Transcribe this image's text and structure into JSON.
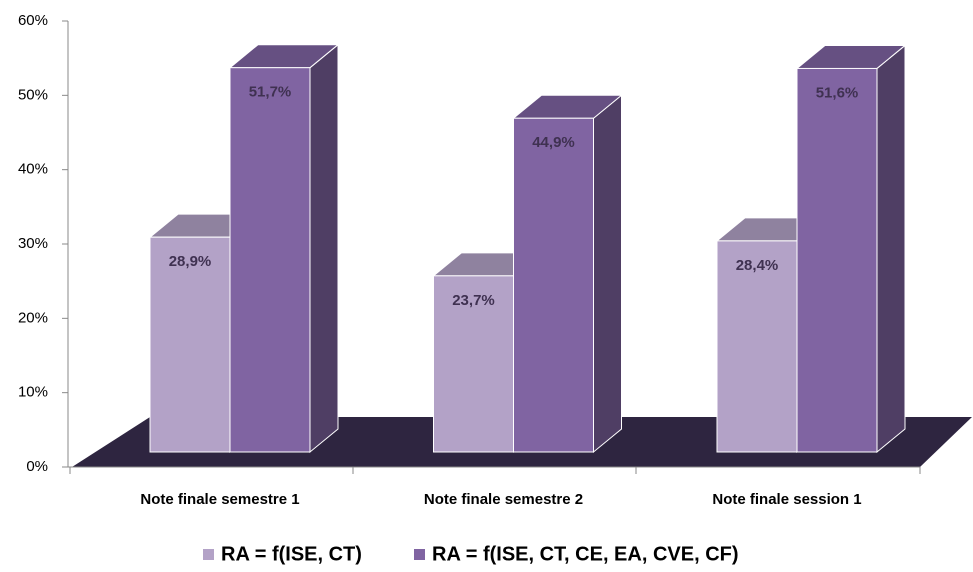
{
  "chart_data": {
    "type": "bar3d",
    "categories": [
      "Note finale semestre 1",
      "Note finale semestre 2",
      "Note finale session 1"
    ],
    "series": [
      {
        "name": "RA = f(ISE, CT)",
        "color": "#b3a2c7",
        "values": [
          28.9,
          23.7,
          28.4
        ],
        "value_labels": [
          "28,9%",
          "23,7%",
          "28,4%"
        ]
      },
      {
        "name": "RA = f(ISE, CT, CE, EA, CVE, CF)",
        "color": "#8064a2",
        "values": [
          51.7,
          44.9,
          51.6
        ],
        "value_labels": [
          "51,7%",
          "44,9%",
          "51,6%"
        ]
      }
    ],
    "ylim": [
      0,
      60
    ],
    "yticks": [
      {
        "value": 0,
        "label": "0%"
      },
      {
        "value": 10,
        "label": "10%"
      },
      {
        "value": 20,
        "label": "20%"
      },
      {
        "value": 30,
        "label": "30%"
      },
      {
        "value": 40,
        "label": "40%"
      },
      {
        "value": 50,
        "label": "50%"
      },
      {
        "value": 60,
        "label": "60%"
      }
    ],
    "legend": "bottom"
  }
}
